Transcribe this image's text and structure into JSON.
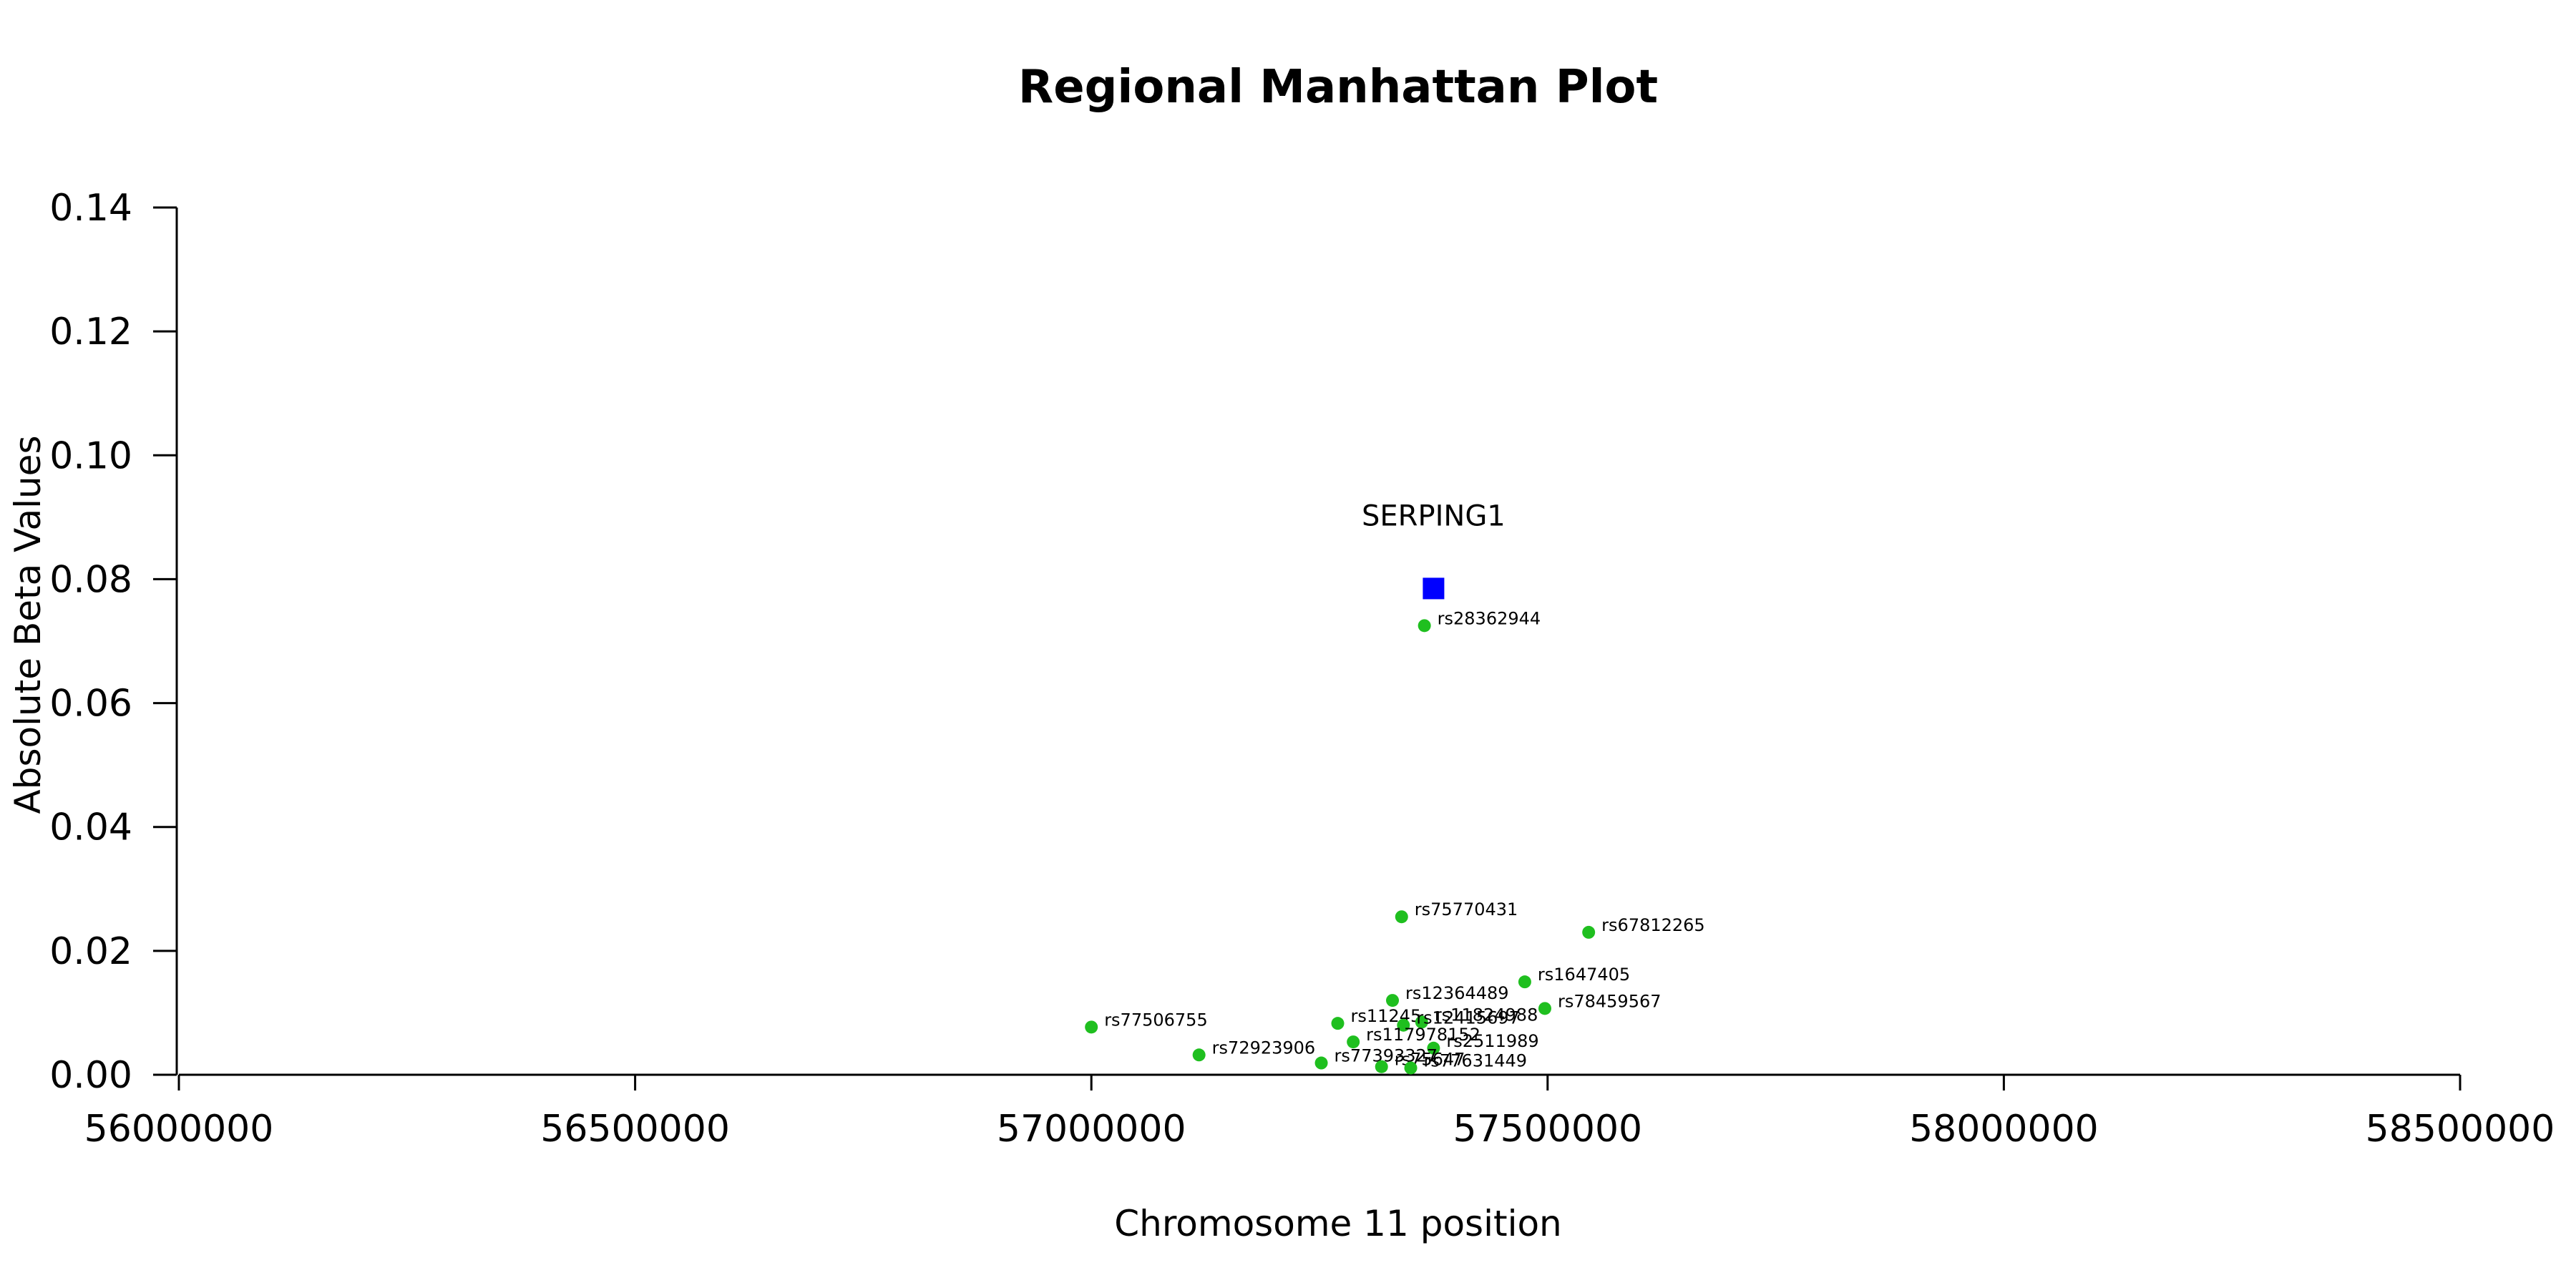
{
  "chart_data": {
    "type": "scatter",
    "title": "Regional Manhattan Plot",
    "xlabel": "Chromosome 11 position",
    "ylabel": "Absolute Beta Values",
    "xlim": [
      56000000,
      58500000
    ],
    "ylim": [
      0,
      0.14
    ],
    "xticks": [
      56000000,
      56500000,
      57000000,
      57500000,
      58000000,
      58500000
    ],
    "xtick_labels": [
      "56000000",
      "56500000",
      "57000000",
      "57500000",
      "58000000",
      "58500000"
    ],
    "yticks": [
      0,
      0.02,
      0.04,
      0.06,
      0.08,
      0.1,
      0.12,
      0.14
    ],
    "ytick_labels": [
      "0.00",
      "0.02",
      "0.04",
      "0.06",
      "0.08",
      "0.10",
      "0.12",
      "0.14"
    ],
    "grid": false,
    "gene": {
      "name": "SERPING1",
      "x": 57375000,
      "y": 0.0785,
      "color": "#0000ff",
      "marker": "square"
    },
    "snp_color": "#1fbf1f",
    "series": [
      {
        "points": [
          {
            "label": "rs28362944",
            "x": 57365000,
            "y": 0.0725
          },
          {
            "label": "rs75770431",
            "x": 57340000,
            "y": 0.0255
          },
          {
            "label": "rs67812265",
            "x": 57545000,
            "y": 0.023
          },
          {
            "label": "rs1647405",
            "x": 57475000,
            "y": 0.015
          },
          {
            "label": "rs12364489",
            "x": 57330000,
            "y": 0.012
          },
          {
            "label": "rs78459567",
            "x": 57497000,
            "y": 0.0107
          },
          {
            "label": "rs11245",
            "x": 57270000,
            "y": 0.0083
          },
          {
            "label": "rs11824988",
            "x": 57362000,
            "y": 0.0085
          },
          {
            "label": "rs12415697",
            "x": 57342000,
            "y": 0.008
          },
          {
            "label": "rs77506755",
            "x": 57000000,
            "y": 0.0077
          },
          {
            "label": "rs117978152",
            "x": 57287000,
            "y": 0.0053
          },
          {
            "label": "rs2511989",
            "x": 57375000,
            "y": 0.0043
          },
          {
            "label": "rs72923906",
            "x": 57118000,
            "y": 0.0032
          },
          {
            "label": "rs77393327",
            "x": 57252000,
            "y": 0.0019
          },
          {
            "label": "rs75647",
            "x": 57318000,
            "y": 0.0013
          },
          {
            "label": "rs77631449",
            "x": 57350000,
            "y": 0.0011
          }
        ]
      }
    ]
  }
}
